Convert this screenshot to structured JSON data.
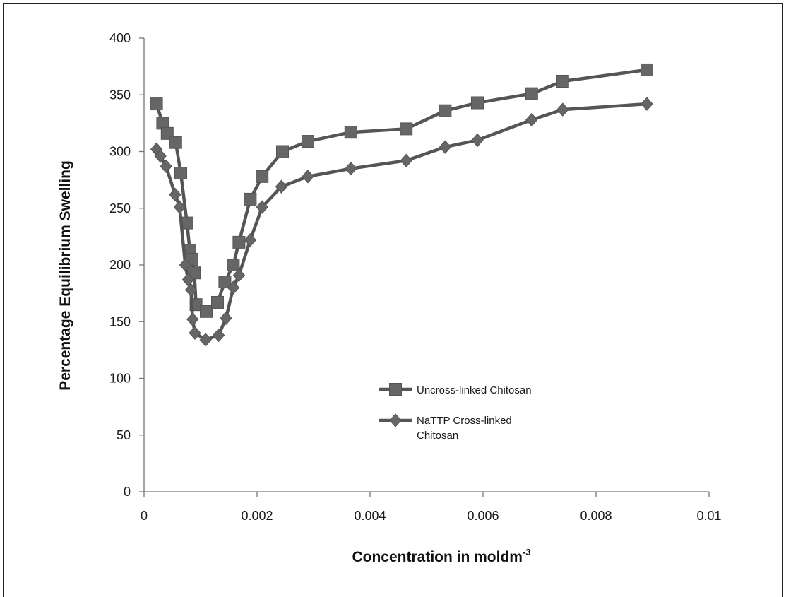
{
  "chart_data": {
    "type": "line",
    "title": "",
    "xlabel": "Concentration in moldm",
    "xlabel_superscript": "-3",
    "ylabel": "Percentage Equilibrium Swelling",
    "xlim": [
      0,
      0.01
    ],
    "ylim": [
      0,
      400
    ],
    "xticks": [
      0,
      0.002,
      0.004,
      0.006,
      0.008,
      0.01
    ],
    "xtick_labels": [
      "0",
      "0.002",
      "0.004",
      "0.006",
      "0.008",
      "0.01"
    ],
    "yticks": [
      0,
      50,
      100,
      150,
      200,
      250,
      300,
      350,
      400
    ],
    "ytick_labels": [
      "0",
      "50",
      "100",
      "150",
      "200",
      "250",
      "300",
      "350",
      "400"
    ],
    "grid": false,
    "legend_position": "center-right",
    "line_color": "#555555",
    "marker_color": "#666666",
    "series": [
      {
        "name": "Uncross-linked Chitosan",
        "marker": "square",
        "x": [
          0.00022,
          0.00033,
          0.00041,
          0.00056,
          0.00065,
          0.00076,
          0.00081,
          0.00085,
          0.00089,
          0.00092,
          0.0011,
          0.0013,
          0.00143,
          0.00158,
          0.00168,
          0.00188,
          0.00209,
          0.00245,
          0.0029,
          0.00366,
          0.00464,
          0.00533,
          0.0059,
          0.00686,
          0.00741,
          0.0089
        ],
        "y": [
          342,
          325,
          316,
          308,
          281,
          237,
          213,
          205,
          193,
          165,
          159,
          167,
          185,
          200,
          220,
          258,
          278,
          300,
          309,
          317,
          320,
          336,
          343,
          351,
          362,
          372
        ]
      },
      {
        "name": "NaTTP Cross-linked Chitosan",
        "name_lines": [
          "NaTTP Cross-linked",
          "Chitosan"
        ],
        "marker": "diamond",
        "x": [
          0.00022,
          0.00029,
          0.00039,
          0.00055,
          0.00063,
          0.00073,
          0.00078,
          0.00083,
          0.00086,
          0.0009,
          0.00109,
          0.00132,
          0.00145,
          0.00158,
          0.00168,
          0.00188,
          0.00209,
          0.00243,
          0.0029,
          0.00366,
          0.00464,
          0.00533,
          0.0059,
          0.00686,
          0.00741,
          0.0089
        ],
        "y": [
          302,
          296,
          287,
          262,
          251,
          200,
          187,
          178,
          152,
          140,
          134,
          138,
          153,
          180,
          191,
          222,
          251,
          269,
          278,
          285,
          292,
          304,
          310,
          328,
          337,
          342
        ]
      }
    ]
  }
}
